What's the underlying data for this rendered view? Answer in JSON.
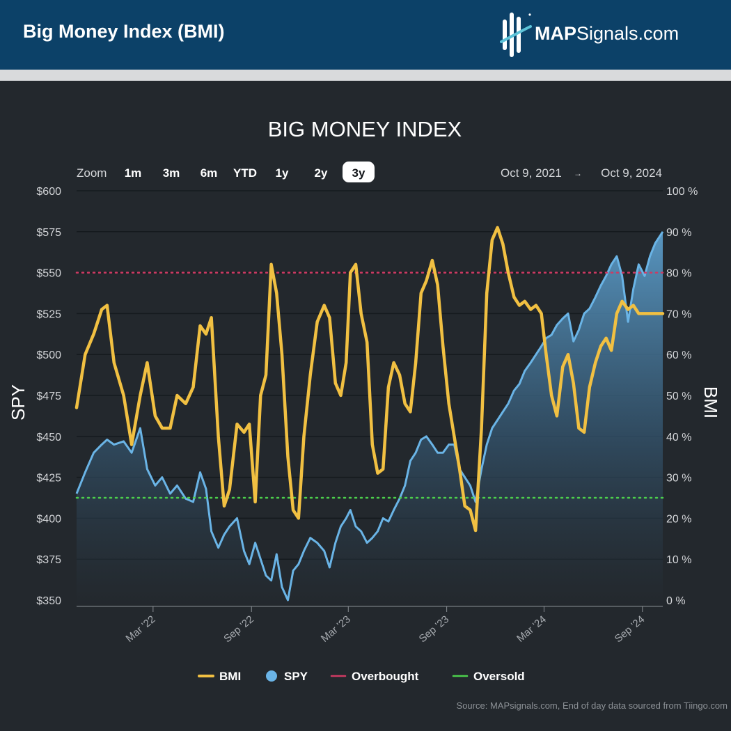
{
  "header": {
    "title": "Big Money Index (BMI)",
    "logo_bold": "MAP",
    "logo_rest": "Signals.com"
  },
  "toolbar": {
    "zoom_label": "Zoom",
    "zoom_buttons": [
      "1m",
      "3m",
      "6m",
      "YTD",
      "1y",
      "2y",
      "3y"
    ],
    "zoom_selected": "3y",
    "range_from": "Oct 9, 2021",
    "range_arrow": "→",
    "range_to": "Oct 9, 2024"
  },
  "source_note": "Source: MAPsignals.com, End of day data sourced from Tiingo.com",
  "colors": {
    "header_bg": "#0c4168",
    "chart_bg": "#23282d",
    "bmi": "#f1c042",
    "spy": "#6ab4e6",
    "overbought": "#cf3a63",
    "oversold": "#4cd04c"
  },
  "chart_data": {
    "type": "line",
    "title": "BIG MONEY INDEX",
    "x_start": "2021-10-09",
    "x_end": "2024-10-09",
    "x_ticks": [
      "Mar '22",
      "Sep '22",
      "Mar '23",
      "Sep '23",
      "Mar '24",
      "Sep '24"
    ],
    "x_tick_dates": [
      "2022-03-01",
      "2022-09-01",
      "2023-03-01",
      "2023-09-01",
      "2024-03-01",
      "2024-09-01"
    ],
    "y_left": {
      "label": "SPY",
      "range": [
        350,
        600
      ],
      "ticks": [
        "$350",
        "$375",
        "$400",
        "$425",
        "$450",
        "$475",
        "$500",
        "$525",
        "$550",
        "$575",
        "$600"
      ]
    },
    "y_right": {
      "label": "BMI",
      "range": [
        0,
        100
      ],
      "ticks": [
        "0 %",
        "10 %",
        "20 %",
        "30 %",
        "40 %",
        "50 %",
        "60 %",
        "70 %",
        "80 %",
        "90 %",
        "100 %"
      ]
    },
    "overbought_level": 80,
    "oversold_level": 25,
    "legend": [
      "BMI",
      "SPY",
      "Overbought",
      "Oversold"
    ],
    "legend_position": "bottom",
    "series": [
      {
        "name": "BMI",
        "axis": "right",
        "points": [
          [
            "2021-10-09",
            47
          ],
          [
            "2021-10-25",
            60
          ],
          [
            "2021-11-10",
            65
          ],
          [
            "2021-11-25",
            71
          ],
          [
            "2021-12-05",
            72
          ],
          [
            "2021-12-18",
            58
          ],
          [
            "2022-01-05",
            50
          ],
          [
            "2022-01-20",
            38
          ],
          [
            "2022-02-05",
            50
          ],
          [
            "2022-02-18",
            58
          ],
          [
            "2022-03-05",
            45
          ],
          [
            "2022-03-18",
            42
          ],
          [
            "2022-04-02",
            42
          ],
          [
            "2022-04-15",
            50
          ],
          [
            "2022-05-01",
            48
          ],
          [
            "2022-05-15",
            52
          ],
          [
            "2022-05-28",
            67
          ],
          [
            "2022-06-08",
            65
          ],
          [
            "2022-06-18",
            69
          ],
          [
            "2022-07-01",
            40
          ],
          [
            "2022-07-12",
            23
          ],
          [
            "2022-07-22",
            27
          ],
          [
            "2022-08-05",
            43
          ],
          [
            "2022-08-18",
            41
          ],
          [
            "2022-08-28",
            43
          ],
          [
            "2022-09-08",
            24
          ],
          [
            "2022-09-18",
            50
          ],
          [
            "2022-09-28",
            55
          ],
          [
            "2022-10-08",
            82
          ],
          [
            "2022-10-18",
            75
          ],
          [
            "2022-10-28",
            60
          ],
          [
            "2022-11-08",
            35
          ],
          [
            "2022-11-18",
            22
          ],
          [
            "2022-11-28",
            20
          ],
          [
            "2022-12-08",
            40
          ],
          [
            "2022-12-20",
            55
          ],
          [
            "2023-01-02",
            68
          ],
          [
            "2023-01-15",
            72
          ],
          [
            "2023-01-25",
            69
          ],
          [
            "2023-02-05",
            53
          ],
          [
            "2023-02-15",
            50
          ],
          [
            "2023-02-25",
            58
          ],
          [
            "2023-03-05",
            80
          ],
          [
            "2023-03-15",
            82
          ],
          [
            "2023-03-25",
            70
          ],
          [
            "2023-04-05",
            63
          ],
          [
            "2023-04-15",
            38
          ],
          [
            "2023-04-25",
            31
          ],
          [
            "2023-05-05",
            32
          ],
          [
            "2023-05-15",
            52
          ],
          [
            "2023-05-25",
            58
          ],
          [
            "2023-06-05",
            55
          ],
          [
            "2023-06-15",
            48
          ],
          [
            "2023-06-25",
            46
          ],
          [
            "2023-07-05",
            58
          ],
          [
            "2023-07-15",
            75
          ],
          [
            "2023-07-25",
            78
          ],
          [
            "2023-08-05",
            83
          ],
          [
            "2023-08-15",
            77
          ],
          [
            "2023-08-25",
            62
          ],
          [
            "2023-09-05",
            48
          ],
          [
            "2023-09-15",
            40
          ],
          [
            "2023-09-25",
            32
          ],
          [
            "2023-10-05",
            23
          ],
          [
            "2023-10-15",
            22
          ],
          [
            "2023-10-25",
            17
          ],
          [
            "2023-11-05",
            42
          ],
          [
            "2023-11-15",
            75
          ],
          [
            "2023-11-25",
            88
          ],
          [
            "2023-12-05",
            91
          ],
          [
            "2023-12-15",
            87
          ],
          [
            "2023-12-25",
            80
          ],
          [
            "2024-01-05",
            74
          ],
          [
            "2024-01-15",
            72
          ],
          [
            "2024-01-25",
            73
          ],
          [
            "2024-02-05",
            71
          ],
          [
            "2024-02-15",
            72
          ],
          [
            "2024-02-25",
            70
          ],
          [
            "2024-03-05",
            60
          ],
          [
            "2024-03-15",
            50
          ],
          [
            "2024-03-25",
            45
          ],
          [
            "2024-04-05",
            57
          ],
          [
            "2024-04-15",
            60
          ],
          [
            "2024-04-25",
            53
          ],
          [
            "2024-05-05",
            42
          ],
          [
            "2024-05-15",
            41
          ],
          [
            "2024-05-25",
            52
          ],
          [
            "2024-06-05",
            58
          ],
          [
            "2024-06-15",
            62
          ],
          [
            "2024-06-25",
            64
          ],
          [
            "2024-07-05",
            61
          ],
          [
            "2024-07-15",
            70
          ],
          [
            "2024-07-25",
            73
          ],
          [
            "2024-08-05",
            71
          ],
          [
            "2024-08-15",
            72
          ],
          [
            "2024-08-25",
            70
          ],
          [
            "2024-10-09",
            70
          ]
        ]
      },
      {
        "name": "SPY",
        "axis": "left",
        "points": [
          [
            "2021-10-09",
            415
          ],
          [
            "2021-10-25",
            428
          ],
          [
            "2021-11-10",
            440
          ],
          [
            "2021-11-25",
            445
          ],
          [
            "2021-12-05",
            448
          ],
          [
            "2021-12-18",
            445
          ],
          [
            "2022-01-05",
            447
          ],
          [
            "2022-01-20",
            440
          ],
          [
            "2022-02-05",
            455
          ],
          [
            "2022-02-18",
            430
          ],
          [
            "2022-03-05",
            420
          ],
          [
            "2022-03-18",
            425
          ],
          [
            "2022-04-02",
            415
          ],
          [
            "2022-04-15",
            420
          ],
          [
            "2022-05-01",
            412
          ],
          [
            "2022-05-15",
            410
          ],
          [
            "2022-05-28",
            428
          ],
          [
            "2022-06-08",
            418
          ],
          [
            "2022-06-18",
            392
          ],
          [
            "2022-07-01",
            382
          ],
          [
            "2022-07-12",
            390
          ],
          [
            "2022-07-22",
            395
          ],
          [
            "2022-08-05",
            400
          ],
          [
            "2022-08-18",
            380
          ],
          [
            "2022-08-28",
            372
          ],
          [
            "2022-09-08",
            385
          ],
          [
            "2022-09-18",
            375
          ],
          [
            "2022-09-28",
            365
          ],
          [
            "2022-10-08",
            362
          ],
          [
            "2022-10-18",
            378
          ],
          [
            "2022-10-28",
            358
          ],
          [
            "2022-11-08",
            350
          ],
          [
            "2022-11-18",
            368
          ],
          [
            "2022-11-28",
            372
          ],
          [
            "2022-12-08",
            380
          ],
          [
            "2022-12-20",
            388
          ],
          [
            "2023-01-02",
            385
          ],
          [
            "2023-01-15",
            380
          ],
          [
            "2023-01-25",
            370
          ],
          [
            "2023-02-05",
            385
          ],
          [
            "2023-02-15",
            395
          ],
          [
            "2023-02-25",
            400
          ],
          [
            "2023-03-05",
            405
          ],
          [
            "2023-03-15",
            395
          ],
          [
            "2023-03-25",
            392
          ],
          [
            "2023-04-05",
            385
          ],
          [
            "2023-04-15",
            388
          ],
          [
            "2023-04-25",
            392
          ],
          [
            "2023-05-05",
            400
          ],
          [
            "2023-05-15",
            398
          ],
          [
            "2023-05-25",
            405
          ],
          [
            "2023-06-05",
            412
          ],
          [
            "2023-06-15",
            420
          ],
          [
            "2023-06-25",
            435
          ],
          [
            "2023-07-05",
            440
          ],
          [
            "2023-07-15",
            448
          ],
          [
            "2023-07-25",
            450
          ],
          [
            "2023-08-05",
            445
          ],
          [
            "2023-08-15",
            440
          ],
          [
            "2023-08-25",
            440
          ],
          [
            "2023-09-05",
            445
          ],
          [
            "2023-09-15",
            445
          ],
          [
            "2023-09-25",
            430
          ],
          [
            "2023-10-05",
            425
          ],
          [
            "2023-10-15",
            420
          ],
          [
            "2023-10-25",
            410
          ],
          [
            "2023-11-05",
            430
          ],
          [
            "2023-11-15",
            445
          ],
          [
            "2023-11-25",
            455
          ],
          [
            "2023-12-05",
            460
          ],
          [
            "2023-12-15",
            465
          ],
          [
            "2023-12-25",
            470
          ],
          [
            "2024-01-05",
            478
          ],
          [
            "2024-01-15",
            482
          ],
          [
            "2024-01-25",
            490
          ],
          [
            "2024-02-05",
            495
          ],
          [
            "2024-02-15",
            500
          ],
          [
            "2024-02-25",
            505
          ],
          [
            "2024-03-05",
            510
          ],
          [
            "2024-03-15",
            512
          ],
          [
            "2024-03-25",
            518
          ],
          [
            "2024-04-05",
            522
          ],
          [
            "2024-04-15",
            525
          ],
          [
            "2024-04-25",
            508
          ],
          [
            "2024-05-05",
            515
          ],
          [
            "2024-05-15",
            525
          ],
          [
            "2024-05-25",
            528
          ],
          [
            "2024-06-05",
            535
          ],
          [
            "2024-06-15",
            542
          ],
          [
            "2024-06-25",
            548
          ],
          [
            "2024-07-05",
            555
          ],
          [
            "2024-07-15",
            560
          ],
          [
            "2024-07-25",
            548
          ],
          [
            "2024-08-05",
            520
          ],
          [
            "2024-08-15",
            540
          ],
          [
            "2024-08-25",
            555
          ],
          [
            "2024-09-05",
            548
          ],
          [
            "2024-09-15",
            560
          ],
          [
            "2024-09-25",
            568
          ],
          [
            "2024-10-09",
            575
          ]
        ]
      }
    ]
  }
}
